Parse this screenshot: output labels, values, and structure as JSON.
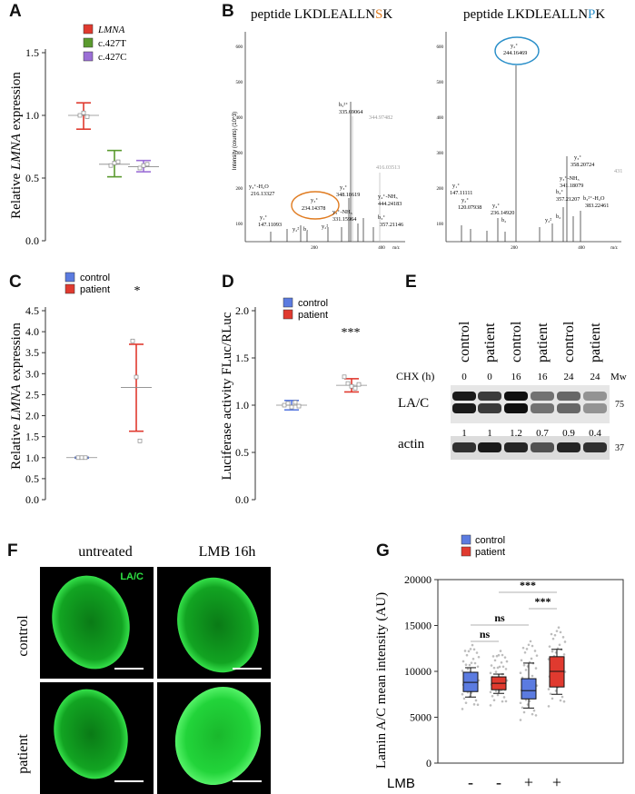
{
  "panels": {
    "A": {
      "label": "A",
      "ylabel_pre": "Relative ",
      "ylabel_gene": "LMNA",
      "ylabel_post": " expression",
      "legend": [
        {
          "name": "LMNA",
          "color": "#e03a2f",
          "italic": true
        },
        {
          "name": "c.427T",
          "color": "#5a9a2e",
          "italic": false
        },
        {
          "name": "c.427C",
          "color": "#9b6fd6",
          "italic": false
        }
      ],
      "chart_data": {
        "type": "scatter",
        "ylim": [
          0,
          1.5
        ],
        "yticks": [
          "0.0",
          "0.5",
          "1.0",
          "1.5"
        ],
        "series": [
          {
            "name": "LMNA",
            "color": "#e03a2f",
            "mean": 1.0,
            "err_low": 0.89,
            "err_high": 1.1,
            "points": [
              1.0,
              1.02,
              0.99
            ]
          },
          {
            "name": "c.427T",
            "color": "#5a9a2e",
            "mean": 0.61,
            "err_low": 0.51,
            "err_high": 0.72,
            "points": [
              0.6,
              0.62,
              0.63
            ]
          },
          {
            "name": "c.427C",
            "color": "#9b6fd6",
            "mean": 0.59,
            "err_low": 0.55,
            "err_high": 0.64,
            "points": [
              0.58,
              0.6,
              0.61
            ]
          }
        ]
      }
    },
    "B": {
      "label": "B",
      "title_left_pre": "peptide LKDLEALLN",
      "title_left_hl": "S",
      "title_left_post": "K",
      "title_right_pre": "peptide LKDLEALLN",
      "title_right_hl": "P",
      "title_right_post": "K",
      "hl_left_color": "#e07b20",
      "hl_right_color": "#2a8fc9",
      "left_ylabel": "Intensity (counts) (10^3)",
      "xunit": "m/z",
      "left_yticks": [
        "600",
        "500",
        "400",
        "300",
        "200",
        "100"
      ],
      "right_yticks": [
        "600",
        "500",
        "400",
        "300",
        "200",
        "100"
      ],
      "xticks": [
        "200",
        "400"
      ],
      "left_annotations": [
        "b₅²⁺",
        "335.69064",
        "344.97482",
        "416.03513",
        "y₃⁺-H₂O",
        "216.13327",
        "y₃⁺",
        "234.14378",
        "y₃⁺",
        "348.18619",
        "y₄⁺-NH₃",
        "444.24183",
        "y₃⁺-NH₃",
        "331.15964",
        "b₃⁺",
        "357.21146",
        "y₁⁺",
        "147.11093",
        "y₂²",
        "b₂",
        "y₂²"
      ],
      "right_annotations": [
        "y₂⁺",
        "244.16469",
        "y₃⁺",
        "358.20724",
        "431",
        "y₃⁺-NH₃",
        "341.18079",
        "b₃⁺",
        "357.21207",
        "b₃²⁺-H₂O",
        "383.22461",
        "y₁⁺",
        "147.11111",
        "y₂⁺",
        "120.07938",
        "y₄⁺",
        "236.14920",
        "b₂",
        "y₂²",
        "b₂"
      ]
    },
    "C": {
      "label": "C",
      "ylabel_pre": "Relative ",
      "ylabel_gene": "LMNA",
      "ylabel_post": " expression",
      "legend": [
        {
          "name": "control",
          "color": "#5b7be0"
        },
        {
          "name": "patient",
          "color": "#e03a2f"
        }
      ],
      "sig": "*",
      "chart_data": {
        "type": "scatter",
        "ylim": [
          0,
          4.5
        ],
        "yticks": [
          "0.0",
          "0.5",
          "1.0",
          "1.5",
          "2.0",
          "2.5",
          "3.0",
          "3.5",
          "4.0",
          "4.5"
        ],
        "series": [
          {
            "name": "control",
            "color": "#5b7be0",
            "mean": 1.0,
            "err_low": 0.99,
            "err_high": 1.01,
            "points": [
              1.0,
              1.0,
              1.0
            ]
          },
          {
            "name": "patient",
            "color": "#e03a2f",
            "mean": 2.67,
            "err_low": 1.63,
            "err_high": 3.7,
            "points": [
              3.78,
              2.92,
              1.4
            ]
          }
        ]
      }
    },
    "D": {
      "label": "D",
      "ylabel": "Luciferase activity FLuc/RLuc",
      "legend": [
        {
          "name": "control",
          "color": "#5b7be0"
        },
        {
          "name": "patient",
          "color": "#e03a2f"
        }
      ],
      "sig": "***",
      "chart_data": {
        "type": "scatter",
        "ylim": [
          0,
          2.0
        ],
        "yticks": [
          "0.0",
          "0.5",
          "1.0",
          "1.5",
          "2.0"
        ],
        "series": [
          {
            "name": "control",
            "color": "#5b7be0",
            "mean": 1.0,
            "err_low": 0.95,
            "err_high": 1.05,
            "points": [
              1.0,
              1.02,
              0.98,
              1.03,
              0.99
            ]
          },
          {
            "name": "patient",
            "color": "#e03a2f",
            "mean": 1.21,
            "err_low": 1.14,
            "err_high": 1.28,
            "points": [
              1.3,
              1.23,
              1.2,
              1.18,
              1.22
            ]
          }
        ]
      }
    },
    "E": {
      "label": "E",
      "lanes": [
        "control",
        "patient",
        "control",
        "patient",
        "control",
        "patient"
      ],
      "chx_label": "CHX (h)",
      "chx": [
        "0",
        "0",
        "16",
        "16",
        "24",
        "24"
      ],
      "mw_label": "Mw",
      "lac_label": "LA/C",
      "mw_lac": "75",
      "ratios": [
        "1",
        "1",
        "1.2",
        "0.7",
        "0.9",
        "0.4"
      ],
      "actin_label": "actin",
      "mw_actin": "37"
    },
    "F": {
      "label": "F",
      "col_untreated": "untreated",
      "col_lmb": "LMB 16h",
      "row_control": "control",
      "row_patient": "patient",
      "stain": "LA/C"
    },
    "G": {
      "label": "G",
      "ylabel": "Lamin A/C mean intensity (AU)",
      "legend": [
        {
          "name": "control",
          "color": "#5b7be0"
        },
        {
          "name": "patient",
          "color": "#e03a2f"
        }
      ],
      "lmb_label": "LMB",
      "lmb": [
        "-",
        "-",
        "+",
        "+"
      ],
      "sig": [
        "ns",
        "ns",
        "***",
        "***"
      ],
      "chart_data": {
        "type": "box",
        "ylim": [
          0,
          20000
        ],
        "yticks": [
          "0",
          "5000",
          "10000",
          "15000",
          "20000"
        ],
        "boxes": [
          {
            "name": "control",
            "lmb": "-",
            "color": "#5b7be0",
            "min": 7200,
            "q1": 7800,
            "median": 8800,
            "q3": 9900,
            "max": 10400
          },
          {
            "name": "patient",
            "lmb": "-",
            "color": "#e03a2f",
            "min": 7600,
            "q1": 8000,
            "median": 8700,
            "q3": 9400,
            "max": 9700
          },
          {
            "name": "control",
            "lmb": "+",
            "color": "#5b7be0",
            "min": 6000,
            "q1": 7000,
            "median": 7900,
            "q3": 9200,
            "max": 10900
          },
          {
            "name": "patient",
            "lmb": "+",
            "color": "#e03a2f",
            "min": 7500,
            "q1": 8300,
            "median": 10000,
            "q3": 11600,
            "max": 12400
          }
        ]
      }
    }
  }
}
